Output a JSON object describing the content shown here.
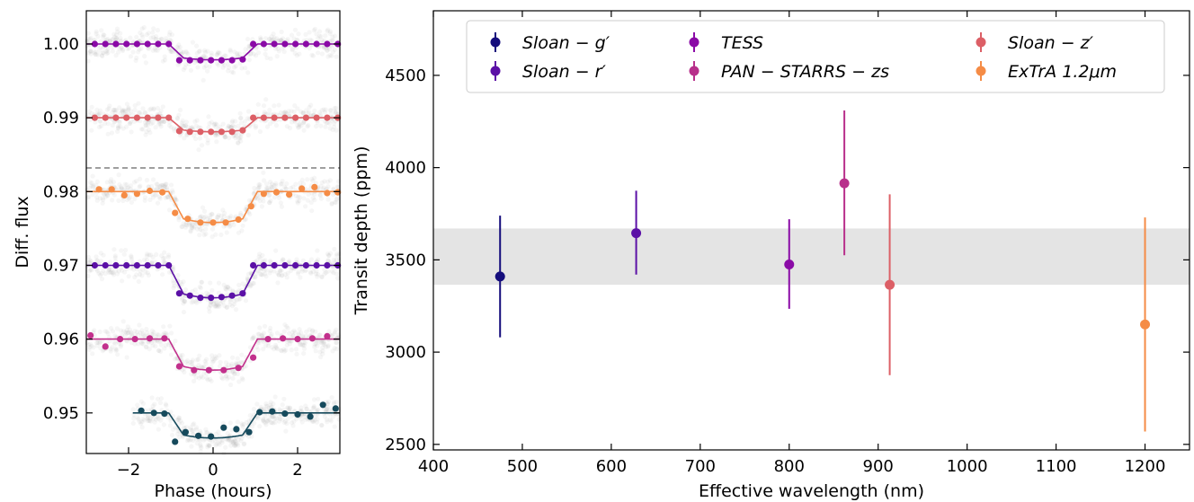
{
  "chart_data": [
    {
      "type": "scatter",
      "title": "",
      "xlabel": "Phase (hours)",
      "ylabel": "Diff. flux",
      "xlim": [
        -3,
        3
      ],
      "ylim": [
        0.9445,
        1.0045
      ],
      "xticks": [
        -2,
        0,
        2
      ],
      "yticks": [
        0.95,
        0.96,
        0.97,
        0.98,
        0.99,
        1.0
      ],
      "ytick_labels": [
        "0.95",
        "0.96",
        "0.97",
        "0.98",
        "0.99",
        "1.00"
      ],
      "reference_line": {
        "y": 0.9832,
        "style": "dashed"
      },
      "transit_model": {
        "t_ingress_start": -1.05,
        "t_ingress_end": -0.7,
        "t_egress_start": 0.7,
        "t_egress_end": 1.05
      },
      "series": [
        {
          "color": "#8a0aa6",
          "baseline": 1.0,
          "depth": 0.00215,
          "x": [
            -2.8,
            -2.55,
            -2.3,
            -2.05,
            -1.8,
            -1.55,
            -1.3,
            -1.05,
            -0.8,
            -0.55,
            -0.3,
            -0.05,
            0.2,
            0.45,
            0.7,
            0.95,
            1.2,
            1.45,
            1.7,
            1.95,
            2.2,
            2.45,
            2.7,
            2.95
          ],
          "y": [
            1.0,
            1.0,
            1.0,
            1.0,
            1.0,
            1.0,
            1.0,
            1.0,
            0.9978,
            0.9978,
            0.9978,
            0.9978,
            0.9978,
            0.9978,
            0.9979,
            1.0,
            1.0,
            1.0,
            1.0,
            1.0,
            1.0,
            1.0,
            1.0,
            1.0
          ]
        },
        {
          "color": "#dc5f66",
          "baseline": 0.99,
          "depth": 0.0019,
          "x": [
            -2.8,
            -2.55,
            -2.3,
            -2.05,
            -1.8,
            -1.55,
            -1.3,
            -1.05,
            -0.8,
            -0.55,
            -0.3,
            -0.05,
            0.2,
            0.45,
            0.7,
            0.95,
            1.2,
            1.45,
            1.7,
            1.95,
            2.2,
            2.45,
            2.7,
            2.95
          ],
          "y": [
            0.99,
            0.99,
            0.99,
            0.99,
            0.99,
            0.99,
            0.99,
            0.99,
            0.9882,
            0.9881,
            0.9881,
            0.9881,
            0.9881,
            0.9881,
            0.9883,
            0.99,
            0.99,
            0.99,
            0.99,
            0.99,
            0.99,
            0.99,
            0.99,
            0.99
          ]
        },
        {
          "color": "#f58c46",
          "baseline": 0.98,
          "depth": 0.0042,
          "x": [
            -2.7,
            -2.4,
            -2.1,
            -1.8,
            -1.5,
            -1.2,
            -0.9,
            -0.6,
            -0.3,
            0.0,
            0.3,
            0.6,
            0.9,
            1.2,
            1.5,
            1.8,
            2.1,
            2.4,
            2.7,
            2.95
          ],
          "y": [
            0.9803,
            0.9803,
            0.9795,
            0.9797,
            0.9801,
            0.9799,
            0.9771,
            0.9763,
            0.9758,
            0.9758,
            0.9758,
            0.9762,
            0.978,
            0.9797,
            0.9799,
            0.9796,
            0.9804,
            0.9806,
            0.9798,
            0.9799
          ]
        },
        {
          "color": "#5b10a6",
          "baseline": 0.97,
          "depth": 0.0044,
          "x": [
            -2.8,
            -2.55,
            -2.3,
            -2.05,
            -1.8,
            -1.55,
            -1.3,
            -1.05,
            -0.8,
            -0.55,
            -0.3,
            -0.05,
            0.2,
            0.45,
            0.7,
            0.95,
            1.2,
            1.45,
            1.7,
            1.95,
            2.2,
            2.45,
            2.7,
            2.95
          ],
          "y": [
            0.97,
            0.97,
            0.97,
            0.97,
            0.97,
            0.97,
            0.97,
            0.97,
            0.9662,
            0.9659,
            0.9656,
            0.9656,
            0.9657,
            0.9659,
            0.9662,
            0.97,
            0.97,
            0.97,
            0.97,
            0.97,
            0.97,
            0.97,
            0.97,
            0.97
          ]
        },
        {
          "color": "#c2308c",
          "baseline": 0.96,
          "depth": 0.0042,
          "x": [
            -2.9,
            -2.55,
            -2.2,
            -1.85,
            -1.5,
            -1.15,
            -0.8,
            -0.45,
            -0.1,
            0.25,
            0.6,
            0.95,
            1.3,
            1.65,
            2.0,
            2.35,
            2.7
          ],
          "y": [
            0.9605,
            0.959,
            0.96,
            0.96,
            0.9601,
            0.9601,
            0.9563,
            0.9558,
            0.9558,
            0.9558,
            0.9561,
            0.9575,
            0.96,
            0.9601,
            0.96,
            0.9601,
            0.9604
          ]
        },
        {
          "color": "#164a5c",
          "baseline": 0.95,
          "depth": 0.0034,
          "x_start": -1.9,
          "x": [
            -1.7,
            -1.4,
            -1.15,
            -0.9,
            -0.65,
            -0.35,
            -0.05,
            0.25,
            0.55,
            0.85,
            1.1,
            1.4,
            1.7,
            2.0,
            2.3,
            2.6,
            2.9
          ],
          "y": [
            0.9503,
            0.95,
            0.9499,
            0.9461,
            0.9474,
            0.9469,
            0.9468,
            0.948,
            0.9478,
            0.9474,
            0.9501,
            0.9502,
            0.9499,
            0.9498,
            0.9495,
            0.9511,
            0.9506
          ]
        }
      ]
    },
    {
      "type": "scatter",
      "title": "",
      "xlabel": "Effective wavelength (nm)",
      "ylabel": "Transit depth (ppm)",
      "xlim": [
        400,
        1250
      ],
      "ylim": [
        2470,
        4850
      ],
      "xticks": [
        400,
        500,
        600,
        700,
        800,
        900,
        1000,
        1100,
        1200
      ],
      "yticks": [
        2500,
        3000,
        3500,
        4000,
        4500
      ],
      "band": {
        "y_low": 3365,
        "y_high": 3670,
        "color": "#e4e4e4"
      },
      "legend": {
        "placement": "top",
        "columns": 3
      },
      "series": [
        {
          "name": "Sloan − g′",
          "color": "#150d7c",
          "x": 475,
          "y": 3410,
          "err_low": 330,
          "err_high": 330
        },
        {
          "name": "Sloan − r′",
          "color": "#5b10a6",
          "x": 628,
          "y": 3645,
          "err_low": 225,
          "err_high": 230
        },
        {
          "name": "TESS",
          "color": "#8a0aa6",
          "x": 800,
          "y": 3475,
          "err_low": 240,
          "err_high": 245
        },
        {
          "name": "PAN − STARRS − zs",
          "color": "#b8308b",
          "x": 862,
          "y": 3915,
          "err_low": 390,
          "err_high": 395
        },
        {
          "name": "Sloan − z′",
          "color": "#dc5f66",
          "x": 913,
          "y": 3365,
          "err_low": 490,
          "err_high": 490
        },
        {
          "name": "ExTrA 1.2μm",
          "color": "#f58c46",
          "x": 1200,
          "y": 3150,
          "err_low": 580,
          "err_high": 580
        }
      ]
    }
  ]
}
